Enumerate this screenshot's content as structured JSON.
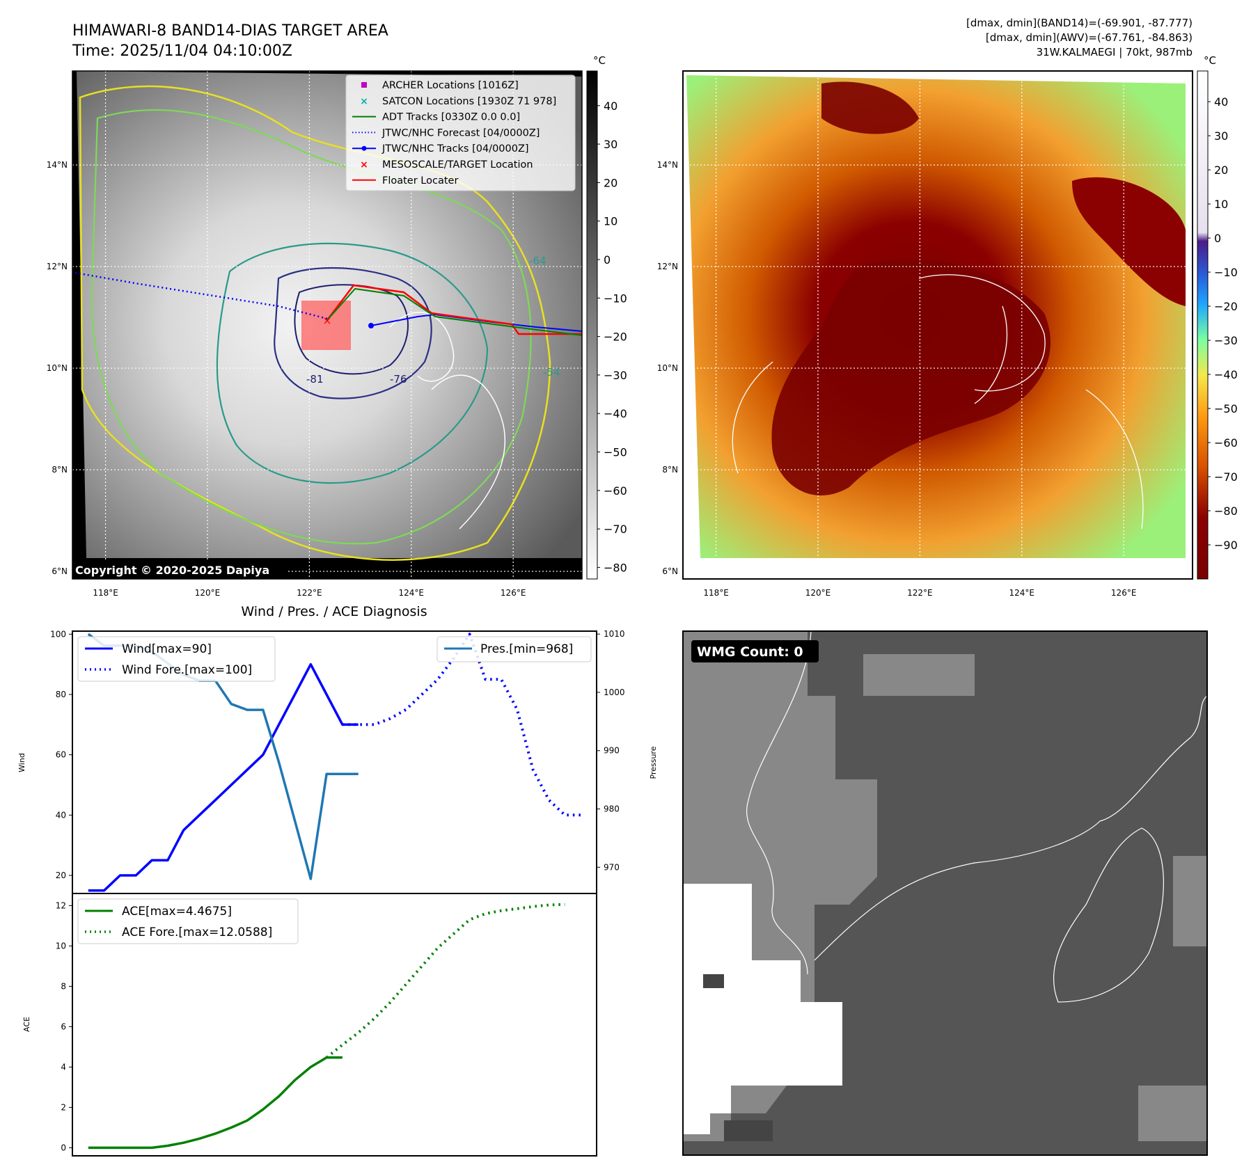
{
  "header": {
    "title_line1": "HIMAWARI-8 BAND14-DIAS TARGET AREA",
    "title_line2": "Time: 2025/11/04 04:10:00Z",
    "info_line1": "[dmax, dmin](BAND14)=(-69.901, -87.777)",
    "info_line2": "[dmax, dmin](AWV)=(-67.761, -84.863)",
    "info_line3": "31W.KALMAEGI | 70kt, 987mb"
  },
  "map": {
    "lon_labels": [
      "118°E",
      "120°E",
      "122°E",
      "124°E",
      "126°E"
    ],
    "lat_labels": [
      "14°N",
      "12°N",
      "10°N",
      "8°N",
      "6°N"
    ],
    "lon_values": [
      118,
      120,
      122,
      124,
      126
    ],
    "lat_values": [
      14,
      12,
      10,
      8,
      6
    ],
    "extent": {
      "lon": [
        117.35,
        127.35
      ],
      "lat": [
        5.85,
        15.85
      ]
    },
    "copyright": "Copyright © 2020-2025 Dapiya",
    "contour_labels": [
      "-64",
      "-76",
      "-81",
      "-54"
    ],
    "legend": [
      {
        "label": "ARCHER Locations [1016Z]",
        "color": "#c000c0",
        "icon": "square-marker"
      },
      {
        "label": "SATCON Locations [1930Z 71 978]",
        "color": "#00b0b0",
        "icon": "x-marker"
      },
      {
        "label": "ADT Tracks [0330Z 0.0 0.0]",
        "color": "#008000",
        "icon": "line"
      },
      {
        "label": "JTWC/NHC Forecast [04/0000Z]",
        "color": "#0000ff",
        "icon": "dotted-line"
      },
      {
        "label": "JTWC/NHC Tracks [04/0000Z]",
        "color": "#0000ff",
        "icon": "line-dot"
      },
      {
        "label": "MESOSCALE/TARGET Location",
        "color": "#ff0000",
        "icon": "x-marker"
      },
      {
        "label": "Floater Locater",
        "color": "#ff0000",
        "icon": "line"
      }
    ]
  },
  "colorbar_gray": {
    "unit": "°C",
    "ticks": [
      "40",
      "30",
      "20",
      "10",
      "0",
      "−10",
      "−20",
      "−30",
      "−40",
      "−50",
      "−60",
      "−70",
      "−80"
    ],
    "values": [
      40,
      30,
      20,
      10,
      0,
      -10,
      -20,
      -30,
      -40,
      -50,
      -60,
      -70,
      -80
    ],
    "range": [
      -83,
      49
    ]
  },
  "colorbar_awv": {
    "unit": "°C",
    "ticks": [
      "40",
      "30",
      "20",
      "10",
      "0",
      "−10",
      "−20",
      "−30",
      "−40",
      "−50",
      "−60",
      "−70",
      "−80",
      "−90"
    ],
    "values": [
      40,
      30,
      20,
      10,
      0,
      -10,
      -20,
      -30,
      -40,
      -50,
      -60,
      -70,
      -80,
      -90
    ],
    "range": [
      -100,
      49
    ]
  },
  "wmg": {
    "label": "WMG Count: 0"
  },
  "chart_data": [
    {
      "type": "line",
      "title": "Wind / Pres. / ACE Diagnosis",
      "ylabel": "Wind",
      "ylabel_right": "Pressure",
      "ylim": [
        14,
        101
      ],
      "ylim_right": [
        965.5,
        1010.5
      ],
      "yticks": [
        20,
        40,
        60,
        80,
        100
      ],
      "yticks_right": [
        970,
        980,
        990,
        1000,
        1010
      ],
      "xlim": [
        -1,
        32
      ],
      "series": [
        {
          "name": "Wind[max=90]",
          "axis": "left",
          "color": "#0000ff",
          "style": "solid",
          "x": [
            0,
            1,
            2,
            3,
            4,
            5,
            6,
            7,
            8,
            9,
            10,
            11,
            12,
            13,
            14,
            15,
            16,
            17
          ],
          "y": [
            15,
            15,
            20,
            20,
            25,
            25,
            35,
            40,
            45,
            50,
            55,
            60,
            70,
            80,
            90,
            80,
            70,
            70
          ]
        },
        {
          "name": "Wind Fore.[max=100]",
          "axis": "left",
          "color": "#0000ff",
          "style": "dotted",
          "x": [
            16,
            17,
            18,
            19,
            20,
            21,
            22,
            23,
            24,
            25,
            26,
            27,
            28,
            29,
            30,
            31
          ],
          "y": [
            70,
            70,
            70,
            72,
            75,
            80,
            85,
            92,
            100,
            85,
            85,
            75,
            55,
            45,
            40,
            40
          ]
        },
        {
          "name": "Pres.[min=968]",
          "axis": "right",
          "color": "#1f77b4",
          "style": "solid",
          "x": [
            0,
            1,
            2,
            3,
            4,
            5,
            6,
            7,
            8,
            9,
            10,
            11,
            12,
            13,
            14,
            15,
            16,
            17
          ],
          "y": [
            1010,
            1008,
            1008,
            1008,
            1007,
            1005,
            1003,
            1002,
            1002,
            998,
            997,
            997,
            988,
            978,
            968,
            986,
            986,
            986
          ]
        }
      ]
    },
    {
      "type": "line",
      "ylabel": "ACE",
      "ylim": [
        -0.4,
        12.6
      ],
      "yticks": [
        0,
        2,
        4,
        6,
        8,
        10,
        12
      ],
      "xlim": [
        -1,
        32
      ],
      "series": [
        {
          "name": "ACE[max=4.4675]",
          "color": "#008000",
          "style": "solid",
          "x": [
            0,
            1,
            2,
            3,
            4,
            5,
            6,
            7,
            8,
            9,
            10,
            11,
            12,
            13,
            14,
            15,
            16
          ],
          "y": [
            0,
            0,
            0,
            0,
            0,
            0.1,
            0.25,
            0.45,
            0.7,
            1.0,
            1.35,
            1.9,
            2.55,
            3.35,
            4.0,
            4.4675,
            4.4675
          ]
        },
        {
          "name": "ACE Fore.[max=12.0588]",
          "color": "#008000",
          "style": "dotted",
          "x": [
            15,
            16,
            17,
            18,
            19,
            20,
            21,
            22,
            23,
            24,
            25,
            26,
            27,
            28,
            29,
            30
          ],
          "y": [
            4.4675,
            5.1,
            5.7,
            6.4,
            7.2,
            8.1,
            9.0,
            9.9,
            10.6,
            11.3,
            11.6,
            11.75,
            11.85,
            11.95,
            12.03,
            12.0588
          ]
        }
      ]
    }
  ]
}
